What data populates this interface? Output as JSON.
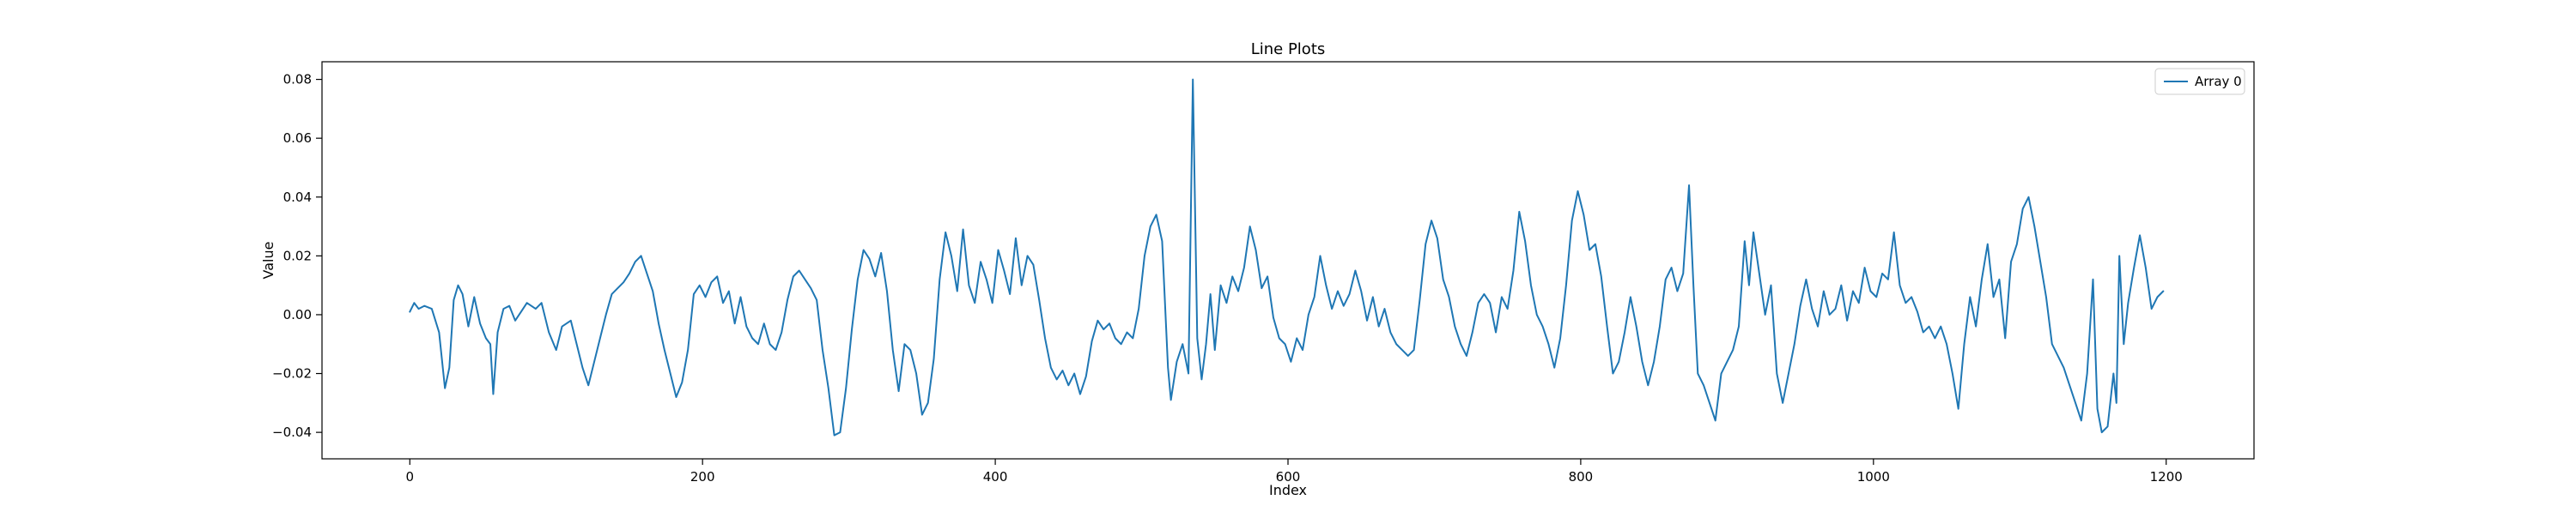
{
  "chart_data": {
    "type": "line",
    "title": "Line Plots",
    "xlabel": "Index",
    "ylabel": "Value",
    "xlim": [
      -60,
      1260
    ],
    "ylim": [
      -0.049,
      0.086
    ],
    "xticks": [
      0,
      200,
      400,
      600,
      800,
      1000,
      1200
    ],
    "xtick_labels": [
      "0",
      "200",
      "400",
      "600",
      "800",
      "1000",
      "1200"
    ],
    "yticks": [
      -0.04,
      -0.02,
      0.0,
      0.02,
      0.04,
      0.06,
      0.08
    ],
    "ytick_labels": [
      "−0.04",
      "−0.02",
      "0.00",
      "0.02",
      "0.04",
      "0.06",
      "0.08"
    ],
    "grid": false,
    "legend_position": "top-right",
    "colors": {
      "series": "#1f77b4",
      "axes": "#000000",
      "background": "#ffffff"
    },
    "series": [
      {
        "name": "Array 0",
        "color": "#1f77b4",
        "points": [
          [
            0,
            0.001
          ],
          [
            3,
            0.004
          ],
          [
            6,
            0.002
          ],
          [
            10,
            0.003
          ],
          [
            15,
            0.002
          ],
          [
            20,
            -0.006
          ],
          [
            24,
            -0.025
          ],
          [
            27,
            -0.018
          ],
          [
            30,
            0.005
          ],
          [
            33,
            0.01
          ],
          [
            36,
            0.007
          ],
          [
            40,
            -0.004
          ],
          [
            44,
            0.006
          ],
          [
            48,
            -0.003
          ],
          [
            52,
            -0.008
          ],
          [
            55,
            -0.01
          ],
          [
            57,
            -0.027
          ],
          [
            60,
            -0.006
          ],
          [
            64,
            0.002
          ],
          [
            68,
            0.003
          ],
          [
            72,
            -0.002
          ],
          [
            76,
            0.001
          ],
          [
            80,
            0.004
          ],
          [
            86,
            0.002
          ],
          [
            90,
            0.004
          ],
          [
            95,
            -0.006
          ],
          [
            100,
            -0.012
          ],
          [
            104,
            -0.004
          ],
          [
            110,
            -0.002
          ],
          [
            115,
            -0.012
          ],
          [
            118,
            -0.018
          ],
          [
            122,
            -0.024
          ],
          [
            126,
            -0.016
          ],
          [
            130,
            -0.008
          ],
          [
            134,
            0.0
          ],
          [
            138,
            0.007
          ],
          [
            142,
            0.009
          ],
          [
            146,
            0.011
          ],
          [
            150,
            0.014
          ],
          [
            154,
            0.018
          ],
          [
            158,
            0.02
          ],
          [
            162,
            0.014
          ],
          [
            166,
            0.008
          ],
          [
            170,
            -0.003
          ],
          [
            174,
            -0.012
          ],
          [
            178,
            -0.02
          ],
          [
            182,
            -0.028
          ],
          [
            186,
            -0.023
          ],
          [
            190,
            -0.012
          ],
          [
            194,
            0.007
          ],
          [
            198,
            0.01
          ],
          [
            202,
            0.006
          ],
          [
            206,
            0.011
          ],
          [
            210,
            0.013
          ],
          [
            214,
            0.004
          ],
          [
            218,
            0.008
          ],
          [
            222,
            -0.003
          ],
          [
            226,
            0.006
          ],
          [
            230,
            -0.004
          ],
          [
            234,
            -0.008
          ],
          [
            238,
            -0.01
          ],
          [
            242,
            -0.003
          ],
          [
            246,
            -0.01
          ],
          [
            250,
            -0.012
          ],
          [
            254,
            -0.006
          ],
          [
            258,
            0.005
          ],
          [
            262,
            0.013
          ],
          [
            266,
            0.015
          ],
          [
            270,
            0.012
          ],
          [
            274,
            0.009
          ],
          [
            278,
            0.005
          ],
          [
            282,
            -0.012
          ],
          [
            286,
            -0.025
          ],
          [
            290,
            -0.041
          ],
          [
            294,
            -0.04
          ],
          [
            298,
            -0.025
          ],
          [
            302,
            -0.005
          ],
          [
            306,
            0.012
          ],
          [
            310,
            0.022
          ],
          [
            314,
            0.019
          ],
          [
            318,
            0.013
          ],
          [
            322,
            0.021
          ],
          [
            326,
            0.008
          ],
          [
            330,
            -0.012
          ],
          [
            334,
            -0.026
          ],
          [
            338,
            -0.01
          ],
          [
            342,
            -0.012
          ],
          [
            346,
            -0.02
          ],
          [
            350,
            -0.034
          ],
          [
            354,
            -0.03
          ],
          [
            358,
            -0.015
          ],
          [
            362,
            0.012
          ],
          [
            366,
            0.028
          ],
          [
            370,
            0.02
          ],
          [
            374,
            0.008
          ],
          [
            378,
            0.029
          ],
          [
            382,
            0.01
          ],
          [
            386,
            0.004
          ],
          [
            390,
            0.018
          ],
          [
            394,
            0.012
          ],
          [
            398,
            0.004
          ],
          [
            402,
            0.022
          ],
          [
            406,
            0.015
          ],
          [
            410,
            0.007
          ],
          [
            414,
            0.026
          ],
          [
            418,
            0.01
          ],
          [
            422,
            0.02
          ],
          [
            426,
            0.017
          ],
          [
            430,
            0.005
          ],
          [
            434,
            -0.008
          ],
          [
            438,
            -0.018
          ],
          [
            442,
            -0.022
          ],
          [
            446,
            -0.019
          ],
          [
            450,
            -0.024
          ],
          [
            454,
            -0.02
          ],
          [
            458,
            -0.027
          ],
          [
            462,
            -0.021
          ],
          [
            466,
            -0.009
          ],
          [
            470,
            -0.002
          ],
          [
            474,
            -0.005
          ],
          [
            478,
            -0.003
          ],
          [
            482,
            -0.008
          ],
          [
            486,
            -0.01
          ],
          [
            490,
            -0.006
          ],
          [
            494,
            -0.008
          ],
          [
            498,
            0.002
          ],
          [
            502,
            0.02
          ],
          [
            506,
            0.03
          ],
          [
            510,
            0.034
          ],
          [
            514,
            0.025
          ],
          [
            518,
            -0.018
          ],
          [
            520,
            -0.029
          ],
          [
            524,
            -0.016
          ],
          [
            528,
            -0.01
          ],
          [
            532,
            -0.02
          ],
          [
            535,
            0.08
          ],
          [
            538,
            -0.008
          ],
          [
            541,
            -0.022
          ],
          [
            544,
            -0.01
          ],
          [
            547,
            0.007
          ],
          [
            550,
            -0.012
          ],
          [
            554,
            0.01
          ],
          [
            558,
            0.004
          ],
          [
            562,
            0.013
          ],
          [
            566,
            0.008
          ],
          [
            570,
            0.016
          ],
          [
            574,
            0.03
          ],
          [
            578,
            0.022
          ],
          [
            582,
            0.009
          ],
          [
            586,
            0.013
          ],
          [
            590,
            -0.001
          ],
          [
            594,
            -0.008
          ],
          [
            598,
            -0.01
          ],
          [
            602,
            -0.016
          ],
          [
            606,
            -0.008
          ],
          [
            610,
            -0.012
          ],
          [
            614,
            0.0
          ],
          [
            618,
            0.006
          ],
          [
            622,
            0.02
          ],
          [
            626,
            0.01
          ],
          [
            630,
            0.002
          ],
          [
            634,
            0.008
          ],
          [
            638,
            0.003
          ],
          [
            642,
            0.007
          ],
          [
            646,
            0.015
          ],
          [
            650,
            0.008
          ],
          [
            654,
            -0.002
          ],
          [
            658,
            0.006
          ],
          [
            662,
            -0.004
          ],
          [
            666,
            0.002
          ],
          [
            670,
            -0.006
          ],
          [
            674,
            -0.01
          ],
          [
            678,
            -0.012
          ],
          [
            682,
            -0.014
          ],
          [
            686,
            -0.012
          ],
          [
            690,
            0.005
          ],
          [
            694,
            0.024
          ],
          [
            698,
            0.032
          ],
          [
            702,
            0.026
          ],
          [
            706,
            0.012
          ],
          [
            710,
            0.006
          ],
          [
            714,
            -0.004
          ],
          [
            718,
            -0.01
          ],
          [
            722,
            -0.014
          ],
          [
            726,
            -0.006
          ],
          [
            730,
            0.004
          ],
          [
            734,
            0.007
          ],
          [
            738,
            0.004
          ],
          [
            742,
            -0.006
          ],
          [
            746,
            0.006
          ],
          [
            750,
            0.002
          ],
          [
            754,
            0.015
          ],
          [
            758,
            0.035
          ],
          [
            762,
            0.025
          ],
          [
            766,
            0.01
          ],
          [
            770,
            0.0
          ],
          [
            774,
            -0.004
          ],
          [
            778,
            -0.01
          ],
          [
            782,
            -0.018
          ],
          [
            786,
            -0.008
          ],
          [
            790,
            0.01
          ],
          [
            794,
            0.032
          ],
          [
            798,
            0.042
          ],
          [
            802,
            0.034
          ],
          [
            806,
            0.022
          ],
          [
            810,
            0.024
          ],
          [
            814,
            0.013
          ],
          [
            818,
            -0.004
          ],
          [
            822,
            -0.02
          ],
          [
            826,
            -0.016
          ],
          [
            830,
            -0.006
          ],
          [
            834,
            0.006
          ],
          [
            838,
            -0.004
          ],
          [
            842,
            -0.016
          ],
          [
            846,
            -0.024
          ],
          [
            850,
            -0.016
          ],
          [
            854,
            -0.004
          ],
          [
            858,
            0.012
          ],
          [
            862,
            0.016
          ],
          [
            866,
            0.008
          ],
          [
            870,
            0.014
          ],
          [
            874,
            0.044
          ],
          [
            877,
            0.01
          ],
          [
            880,
            -0.02
          ],
          [
            884,
            -0.024
          ],
          [
            888,
            -0.03
          ],
          [
            892,
            -0.036
          ],
          [
            896,
            -0.02
          ],
          [
            900,
            -0.016
          ],
          [
            904,
            -0.012
          ],
          [
            908,
            -0.004
          ],
          [
            912,
            0.025
          ],
          [
            915,
            0.01
          ],
          [
            918,
            0.028
          ],
          [
            922,
            0.014
          ],
          [
            926,
            0.0
          ],
          [
            930,
            0.01
          ],
          [
            934,
            -0.02
          ],
          [
            938,
            -0.03
          ],
          [
            942,
            -0.02
          ],
          [
            946,
            -0.01
          ],
          [
            950,
            0.003
          ],
          [
            954,
            0.012
          ],
          [
            958,
            0.002
          ],
          [
            962,
            -0.004
          ],
          [
            966,
            0.008
          ],
          [
            970,
            0.0
          ],
          [
            974,
            0.002
          ],
          [
            978,
            0.01
          ],
          [
            982,
            -0.002
          ],
          [
            986,
            0.008
          ],
          [
            990,
            0.004
          ],
          [
            994,
            0.016
          ],
          [
            998,
            0.008
          ],
          [
            1002,
            0.006
          ],
          [
            1006,
            0.014
          ],
          [
            1010,
            0.012
          ],
          [
            1014,
            0.028
          ],
          [
            1018,
            0.01
          ],
          [
            1022,
            0.004
          ],
          [
            1026,
            0.006
          ],
          [
            1030,
            0.001
          ],
          [
            1034,
            -0.006
          ],
          [
            1038,
            -0.004
          ],
          [
            1042,
            -0.008
          ],
          [
            1046,
            -0.004
          ],
          [
            1050,
            -0.01
          ],
          [
            1054,
            -0.02
          ],
          [
            1058,
            -0.032
          ],
          [
            1062,
            -0.01
          ],
          [
            1066,
            0.006
          ],
          [
            1070,
            -0.004
          ],
          [
            1074,
            0.012
          ],
          [
            1078,
            0.024
          ],
          [
            1082,
            0.006
          ],
          [
            1086,
            0.012
          ],
          [
            1090,
            -0.008
          ],
          [
            1094,
            0.018
          ],
          [
            1098,
            0.024
          ],
          [
            1102,
            0.036
          ],
          [
            1106,
            0.04
          ],
          [
            1110,
            0.03
          ],
          [
            1114,
            0.018
          ],
          [
            1118,
            0.006
          ],
          [
            1122,
            -0.01
          ],
          [
            1126,
            -0.014
          ],
          [
            1130,
            -0.018
          ],
          [
            1134,
            -0.024
          ],
          [
            1138,
            -0.03
          ],
          [
            1142,
            -0.036
          ],
          [
            1146,
            -0.02
          ],
          [
            1150,
            0.012
          ],
          [
            1153,
            -0.032
          ],
          [
            1156,
            -0.04
          ],
          [
            1160,
            -0.038
          ],
          [
            1164,
            -0.02
          ],
          [
            1166,
            -0.03
          ],
          [
            1168,
            0.02
          ],
          [
            1171,
            -0.01
          ],
          [
            1174,
            0.004
          ],
          [
            1178,
            0.016
          ],
          [
            1182,
            0.027
          ],
          [
            1186,
            0.016
          ],
          [
            1190,
            0.002
          ],
          [
            1194,
            0.006
          ],
          [
            1198,
            0.008
          ]
        ]
      }
    ]
  }
}
